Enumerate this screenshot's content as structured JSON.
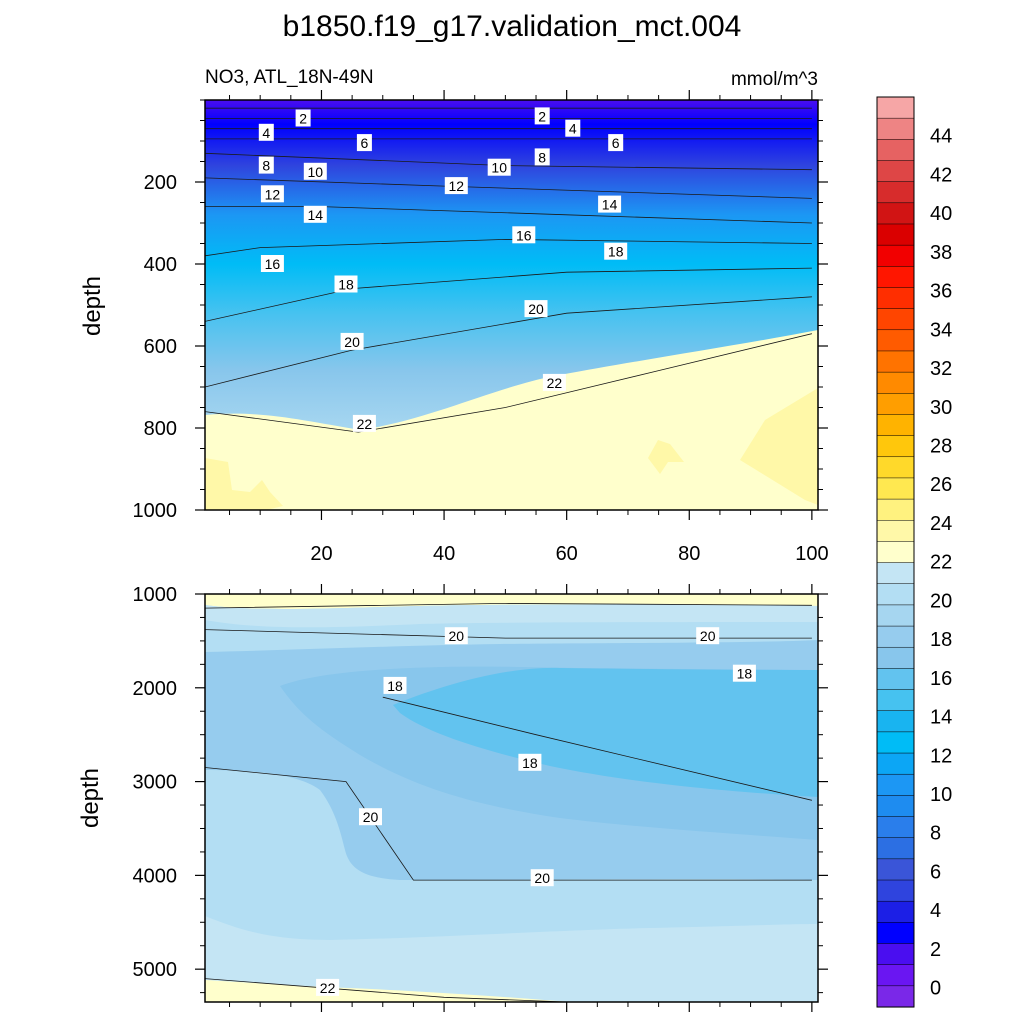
{
  "figure": {
    "title": "b1850.f19_g17.validation_mct.004",
    "subtitle_left": "NO3, ATL_18N-49N",
    "subtitle_right": "mmol/m^3"
  },
  "chart_data": [
    {
      "type": "contour",
      "panel": "upper",
      "ylabel": "depth",
      "xlim": [
        1,
        101
      ],
      "ylim": [
        1000,
        0
      ],
      "xticks": [
        20,
        40,
        60,
        80,
        100
      ],
      "yticks": [
        200,
        400,
        600,
        800,
        1000
      ],
      "contour_interval": 2,
      "contours": [
        {
          "level": 2,
          "points": [
            [
              1,
              20
            ],
            [
              100,
              20
            ]
          ]
        },
        {
          "level": 4,
          "points": [
            [
              1,
              45
            ],
            [
              100,
              45
            ]
          ]
        },
        {
          "level": 6,
          "points": [
            [
              1,
              70
            ],
            [
              100,
              70
            ]
          ]
        },
        {
          "level": 8,
          "points": [
            [
              1,
              95
            ],
            [
              100,
              95
            ]
          ]
        },
        {
          "level": 10,
          "points": [
            [
              1,
              130
            ],
            [
              50,
              160
            ],
            [
              100,
              170
            ]
          ]
        },
        {
          "level": 12,
          "points": [
            [
              1,
              190
            ],
            [
              40,
              210
            ],
            [
              100,
              240
            ]
          ]
        },
        {
          "level": 14,
          "points": [
            [
              1,
              260
            ],
            [
              20,
              260
            ],
            [
              60,
              280
            ],
            [
              100,
              300
            ]
          ]
        },
        {
          "level": 16,
          "points": [
            [
              1,
              380
            ],
            [
              10,
              360
            ],
            [
              50,
              340
            ],
            [
              100,
              350
            ]
          ]
        },
        {
          "level": 18,
          "points": [
            [
              1,
              540
            ],
            [
              25,
              460
            ],
            [
              60,
              420
            ],
            [
              100,
              410
            ]
          ]
        },
        {
          "level": 20,
          "points": [
            [
              1,
              700
            ],
            [
              25,
              610
            ],
            [
              60,
              520
            ],
            [
              100,
              480
            ]
          ]
        },
        {
          "level": 22,
          "points": [
            [
              1,
              760
            ],
            [
              26,
              810
            ],
            [
              50,
              750
            ],
            [
              75,
              660
            ],
            [
              100,
              570
            ]
          ]
        }
      ],
      "contour_labels": [
        {
          "text": "2",
          "x": 17,
          "y": 45
        },
        {
          "text": "2",
          "x": 56,
          "y": 40
        },
        {
          "text": "4",
          "x": 11,
          "y": 80
        },
        {
          "text": "4",
          "x": 61,
          "y": 70
        },
        {
          "text": "6",
          "x": 27,
          "y": 105
        },
        {
          "text": "6",
          "x": 68,
          "y": 105
        },
        {
          "text": "8",
          "x": 11,
          "y": 160
        },
        {
          "text": "8",
          "x": 56,
          "y": 140
        },
        {
          "text": "10",
          "x": 19,
          "y": 175
        },
        {
          "text": "10",
          "x": 49,
          "y": 165
        },
        {
          "text": "12",
          "x": 12,
          "y": 230
        },
        {
          "text": "12",
          "x": 42,
          "y": 210
        },
        {
          "text": "14",
          "x": 19,
          "y": 280
        },
        {
          "text": "14",
          "x": 67,
          "y": 255
        },
        {
          "text": "16",
          "x": 12,
          "y": 400
        },
        {
          "text": "16",
          "x": 53,
          "y": 330
        },
        {
          "text": "18",
          "x": 24,
          "y": 450
        },
        {
          "text": "18",
          "x": 68,
          "y": 370
        },
        {
          "text": "20",
          "x": 25,
          "y": 590
        },
        {
          "text": "20",
          "x": 55,
          "y": 510
        },
        {
          "text": "22",
          "x": 27,
          "y": 790
        },
        {
          "text": "22",
          "x": 58,
          "y": 690
        }
      ]
    },
    {
      "type": "contour",
      "panel": "lower",
      "ylabel": "depth",
      "xlim": [
        1,
        101
      ],
      "ylim": [
        5350,
        1000
      ],
      "yticks": [
        1000,
        2000,
        3000,
        4000,
        5000
      ],
      "contour_interval": 2,
      "contours": [
        {
          "level": 22,
          "points": [
            [
              1,
              1150
            ],
            [
              50,
              1100
            ],
            [
              100,
              1120
            ]
          ]
        },
        {
          "level": 20,
          "points": [
            [
              1,
              1380
            ],
            [
              50,
              1470
            ],
            [
              100,
              1470
            ]
          ]
        },
        {
          "level": 18,
          "points": [
            [
              30,
              2100
            ],
            [
              55,
              2500
            ],
            [
              100,
              3200
            ]
          ]
        },
        {
          "level": 20,
          "points": [
            [
              1,
              2850
            ],
            [
              24,
              3000
            ],
            [
              35,
              4050
            ],
            [
              70,
              4050
            ],
            [
              100,
              4050
            ]
          ]
        },
        {
          "level": 22,
          "points": [
            [
              1,
              5100
            ],
            [
              40,
              5300
            ],
            [
              60,
              5350
            ]
          ]
        }
      ],
      "contour_labels": [
        {
          "text": "20",
          "x": 42,
          "y": 1450
        },
        {
          "text": "20",
          "x": 83,
          "y": 1450
        },
        {
          "text": "18",
          "x": 32,
          "y": 1980
        },
        {
          "text": "18",
          "x": 54,
          "y": 2800
        },
        {
          "text": "18",
          "x": 89,
          "y": 1850
        },
        {
          "text": "20",
          "x": 28,
          "y": 3380
        },
        {
          "text": "20",
          "x": 56,
          "y": 4030
        },
        {
          "text": "22",
          "x": 21,
          "y": 5200
        }
      ]
    }
  ],
  "colorbar": {
    "tick_labels": [
      "0",
      "2",
      "4",
      "6",
      "8",
      "10",
      "12",
      "14",
      "16",
      "18",
      "20",
      "22",
      "24",
      "26",
      "28",
      "30",
      "32",
      "34",
      "36",
      "38",
      "40",
      "42",
      "44"
    ],
    "colors": [
      "#7A28E8",
      "#6A16F2",
      "#4A0EF0",
      "#0000FF",
      "#1C1FE6",
      "#2F44DE",
      "#3A55D8",
      "#2C6FE3",
      "#2A7EEB",
      "#1E8CF0",
      "#1C97F4",
      "#0CA6F5",
      "#00BCF6",
      "#19B4F0",
      "#46C2F0",
      "#62C3EF",
      "#88C6EC",
      "#96CCEE",
      "#A6D6F0",
      "#B3DEF3",
      "#C4E5F4",
      "#FFFFCC",
      "#FFF8A8",
      "#FFF27F",
      "#FFE850",
      "#FFD92A",
      "#FFC70C",
      "#FFB300",
      "#FF9E00",
      "#FF8A00",
      "#FF7300",
      "#FF5B00",
      "#FF4500",
      "#FF2E00",
      "#FF1600",
      "#F20000",
      "#DA0000",
      "#D11414",
      "#D72C2C",
      "#DE4646",
      "#E66262",
      "#EE8484",
      "#F6A6A6"
    ]
  }
}
